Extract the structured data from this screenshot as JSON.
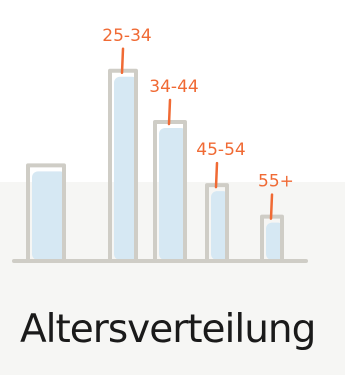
{
  "chart_data": {
    "type": "bar",
    "title": "Altersverteilung",
    "categories": [
      "",
      "25-34",
      "34-44",
      "45-54",
      "55+"
    ],
    "values": [
      24,
      48,
      35,
      19,
      11
    ],
    "ylim": [
      0,
      52
    ],
    "grid": false,
    "colors": {
      "outline": "#cfcdc6",
      "fill": "#d6e8f3",
      "label": "#f06a34",
      "baseline": "#cfcdc6",
      "title": "#1a1a1a"
    }
  }
}
